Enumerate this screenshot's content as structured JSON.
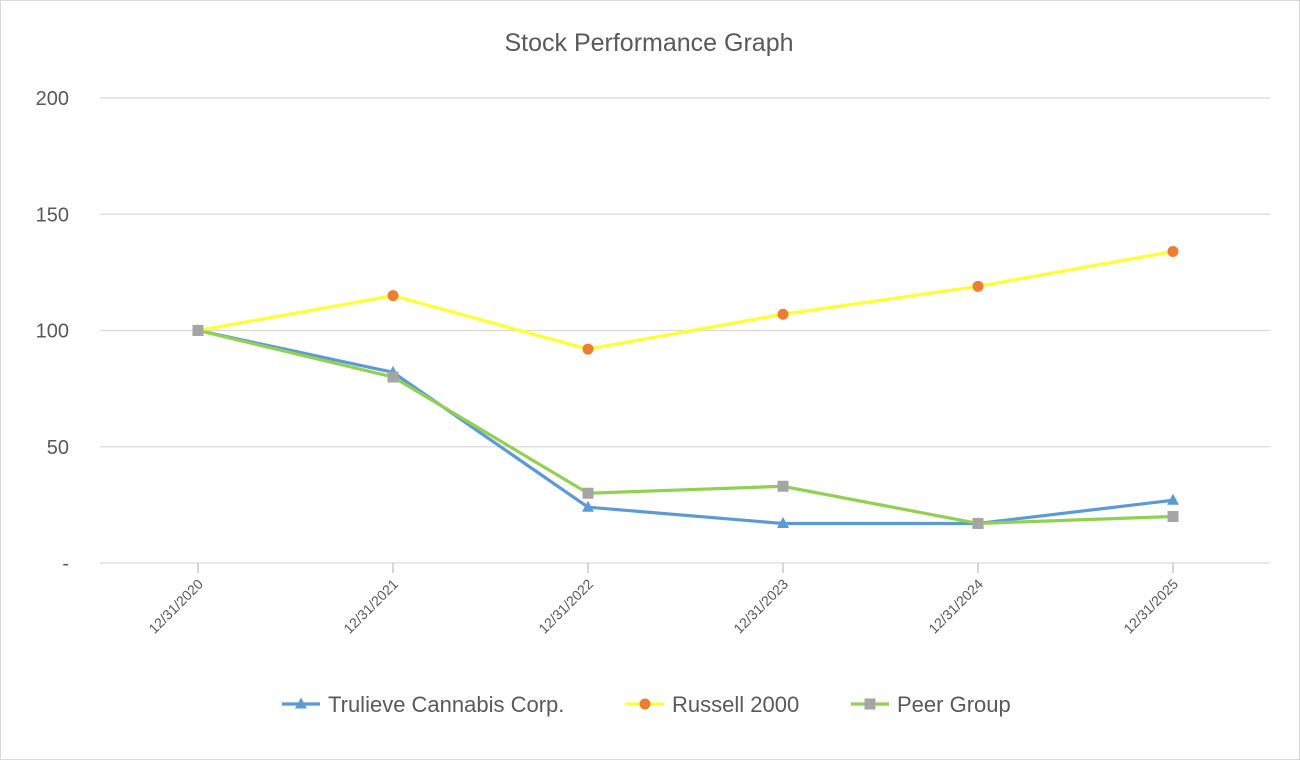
{
  "chart_data": {
    "type": "line",
    "title": "Stock Performance Graph",
    "xlabel": "",
    "ylabel": "",
    "categories": [
      "12/31/2020",
      "12/31/2021",
      "12/31/2022",
      "12/31/2023",
      "12/31/2024",
      "12/31/2025"
    ],
    "y_ticks": [
      {
        "value": 0,
        "label": "-"
      },
      {
        "value": 50,
        "label": "50"
      },
      {
        "value": 100,
        "label": "100"
      },
      {
        "value": 150,
        "label": "150"
      },
      {
        "value": 200,
        "label": "200"
      }
    ],
    "ylim": [
      0,
      200
    ],
    "grid": true,
    "legend_position": "bottom",
    "series": [
      {
        "name": "Trulieve Cannabis Corp.",
        "color": "#5b9bd5",
        "marker": "triangle",
        "marker_color": "#5b9bd5",
        "values": [
          100,
          82,
          24,
          17,
          17,
          27
        ]
      },
      {
        "name": "Russell 2000",
        "color": "#ffff33",
        "marker": "circle",
        "marker_color": "#ed7d31",
        "values": [
          100,
          115,
          92,
          107,
          119,
          134
        ]
      },
      {
        "name": "Peer Group",
        "color": "#92d050",
        "marker": "square",
        "marker_color": "#a5a5a5",
        "values": [
          100,
          80,
          30,
          33,
          17,
          20
        ]
      }
    ]
  }
}
